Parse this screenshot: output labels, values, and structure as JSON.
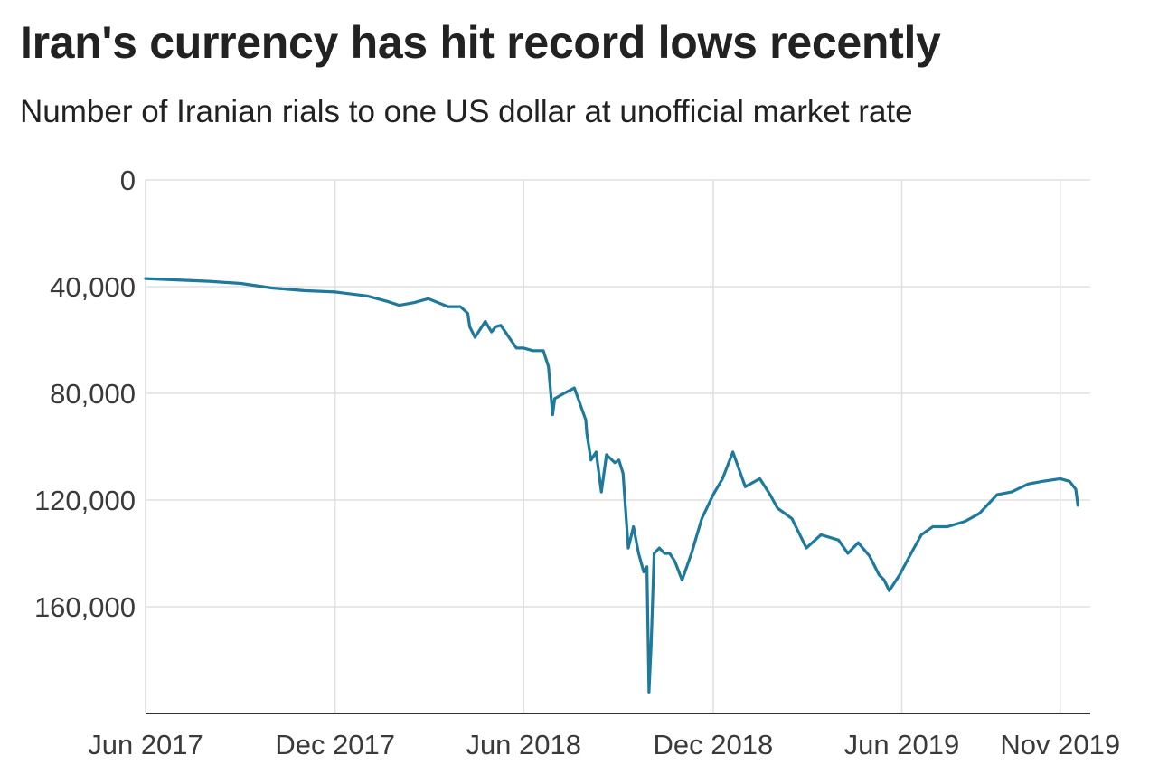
{
  "title": "Iran's currency has hit record lows recently",
  "subtitle": "Number of Iranian rials to one US dollar at unofficial market rate",
  "colors": {
    "line": "#1d7a9c",
    "grid": "#e0e0e0",
    "axis": "#333333",
    "text": "#222222"
  },
  "chart_data": {
    "type": "line",
    "title": "Iran's currency has hit record lows recently",
    "subtitle": "Number of Iranian rials to one US dollar at unofficial market rate",
    "xlabel": "",
    "ylabel": "",
    "y_inverted": true,
    "ylim": [
      0,
      200000
    ],
    "yticks": [
      0,
      40000,
      80000,
      120000,
      160000
    ],
    "ytick_labels": [
      "0",
      "40,000",
      "80,000",
      "120,000",
      "160,000"
    ],
    "xlim": [
      "2017-06-01",
      "2019-11-30"
    ],
    "xticks": [
      "2017-06-01",
      "2017-12-01",
      "2018-06-01",
      "2018-12-01",
      "2019-06-01",
      "2019-11-01"
    ],
    "xtick_labels": [
      "Jun 2017",
      "Dec 2017",
      "Jun 2018",
      "Dec 2018",
      "Jun 2019",
      "Nov 2019"
    ],
    "grid": true,
    "series": [
      {
        "name": "",
        "x": [
          "2017-06-01",
          "2017-07-01",
          "2017-08-01",
          "2017-09-01",
          "2017-10-01",
          "2017-11-01",
          "2017-12-01",
          "2018-01-01",
          "2018-01-20",
          "2018-02-01",
          "2018-02-15",
          "2018-03-01",
          "2018-03-20",
          "2018-04-01",
          "2018-04-08",
          "2018-04-10",
          "2018-04-15",
          "2018-04-25",
          "2018-05-01",
          "2018-05-05",
          "2018-05-10",
          "2018-05-25",
          "2018-06-01",
          "2018-06-10",
          "2018-06-20",
          "2018-06-25",
          "2018-06-29",
          "2018-07-01",
          "2018-07-10",
          "2018-07-20",
          "2018-07-31",
          "2018-08-01",
          "2018-08-05",
          "2018-08-10",
          "2018-08-15",
          "2018-08-20",
          "2018-08-28",
          "2018-09-01",
          "2018-09-05",
          "2018-09-10",
          "2018-09-15",
          "2018-09-20",
          "2018-09-25",
          "2018-09-28",
          "2018-09-30",
          "2018-10-02",
          "2018-10-05",
          "2018-10-10",
          "2018-10-15",
          "2018-10-20",
          "2018-10-25",
          "2018-11-01",
          "2018-11-10",
          "2018-11-20",
          "2018-12-01",
          "2018-12-10",
          "2018-12-20",
          "2019-01-01",
          "2019-01-15",
          "2019-01-25",
          "2019-02-01",
          "2019-02-15",
          "2019-03-01",
          "2019-03-15",
          "2019-04-01",
          "2019-04-10",
          "2019-04-20",
          "2019-05-01",
          "2019-05-10",
          "2019-05-15",
          "2019-05-20",
          "2019-05-30",
          "2019-06-10",
          "2019-06-20",
          "2019-07-01",
          "2019-07-15",
          "2019-08-01",
          "2019-08-15",
          "2019-09-01",
          "2019-09-15",
          "2019-10-01",
          "2019-10-15",
          "2019-11-01",
          "2019-11-10",
          "2019-11-16",
          "2019-11-18"
        ],
        "values": [
          37000,
          37500,
          38000,
          38800,
          40500,
          41500,
          42000,
          43500,
          45500,
          47000,
          46000,
          44500,
          47500,
          47500,
          50000,
          55000,
          59000,
          53000,
          57000,
          55000,
          54500,
          63000,
          63000,
          64000,
          64000,
          70000,
          88000,
          82000,
          80000,
          78000,
          90000,
          95000,
          105000,
          102000,
          117000,
          103000,
          106000,
          105000,
          110000,
          138000,
          130000,
          140000,
          147000,
          145000,
          192000,
          175000,
          140000,
          138000,
          140000,
          140000,
          143000,
          150000,
          140000,
          127000,
          118000,
          112000,
          102000,
          115000,
          112000,
          118000,
          123000,
          127000,
          138000,
          133000,
          135000,
          140000,
          136000,
          141000,
          148000,
          150000,
          154000,
          148000,
          140000,
          133000,
          130000,
          130000,
          128000,
          125000,
          118000,
          117000,
          114000,
          113000,
          112000,
          113000,
          116000,
          122000
        ]
      }
    ]
  }
}
